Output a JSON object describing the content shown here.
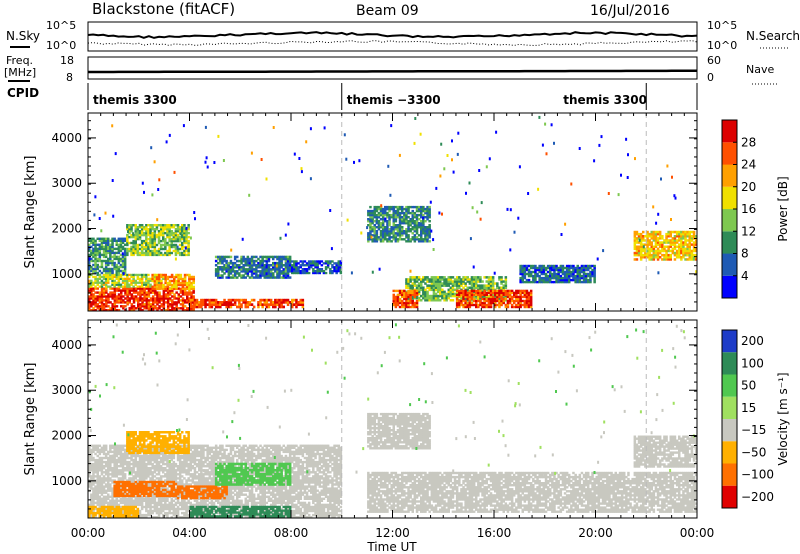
{
  "header": {
    "radar": "Blackstone (fitACF)",
    "beam": "Beam 09",
    "date": "16/Jul/2016"
  },
  "status_panels": {
    "nsky_label": "N.Sky",
    "nsky_ticks": [
      "10^5",
      "10^0"
    ],
    "nsearch_label": "N.Search",
    "nsearch_ticks": [
      "10^5",
      "10^0"
    ],
    "freq_label": "Freq.",
    "freq_unit": "[MHz]",
    "freq_ticks": [
      "18",
      "8"
    ],
    "nave_label": "Nave",
    "nave_ticks": [
      "60",
      "0"
    ],
    "cpid_label": "CPID",
    "cpid_segments": [
      {
        "name": "themis 3300",
        "start_hour": 0,
        "end_hour": 10
      },
      {
        "name": "themis −3300",
        "start_hour": 10,
        "end_hour": 22
      },
      {
        "name": "themis 3300",
        "start_hour": 22,
        "end_hour": 24
      }
    ]
  },
  "chart_data": [
    {
      "type": "heatmap",
      "title": "",
      "xlabel": "Time UT",
      "ylabel": "Slant Range [km]",
      "xlim_hours": [
        0,
        24
      ],
      "ylim": [
        180,
        4550
      ],
      "x_tick_labels": [
        "00:00",
        "04:00",
        "08:00",
        "12:00",
        "16:00",
        "20:00",
        "00:00"
      ],
      "y_tick_labels": [
        "1000",
        "2000",
        "3000",
        "4000"
      ],
      "y_ticks": [
        1000,
        2000,
        3000,
        4000
      ],
      "colorbar_label": "Power [dB]",
      "colorbar_ticks": [
        "4",
        "8",
        "12",
        "16",
        "20",
        "24",
        "28"
      ],
      "colorbar_colors": [
        "#0000ff",
        "#1e5ab4",
        "#2e8b57",
        "#7ec850",
        "#f0e000",
        "#ffa000",
        "#ff5000",
        "#dc0000"
      ],
      "regions": [
        {
          "t0": 0.0,
          "t1": 4.2,
          "r0": 180,
          "r1": 700,
          "value": 28
        },
        {
          "t0": 0.0,
          "t1": 3.0,
          "r0": 700,
          "r1": 1000,
          "value": 16
        },
        {
          "t0": 0.0,
          "t1": 1.5,
          "r0": 1000,
          "r1": 1800,
          "value": 10
        },
        {
          "t0": 1.5,
          "t1": 4.0,
          "r0": 1400,
          "r1": 2100,
          "value": 14
        },
        {
          "t0": 2.5,
          "t1": 4.2,
          "r0": 650,
          "r1": 1000,
          "value": 22
        },
        {
          "t0": 4.0,
          "t1": 8.5,
          "r0": 250,
          "r1": 450,
          "value": 27
        },
        {
          "t0": 5.0,
          "t1": 8.0,
          "r0": 900,
          "r1": 1400,
          "value": 8
        },
        {
          "t0": 8.0,
          "t1": 10.0,
          "r0": 1000,
          "r1": 1300,
          "value": 6
        },
        {
          "t0": 12.5,
          "t1": 16.5,
          "r0": 400,
          "r1": 950,
          "value": 13
        },
        {
          "t0": 14.5,
          "t1": 17.5,
          "r0": 250,
          "r1": 650,
          "value": 27
        },
        {
          "t0": 12.0,
          "t1": 13.0,
          "r0": 250,
          "r1": 650,
          "value": 26
        },
        {
          "t0": 11.0,
          "t1": 13.5,
          "r0": 1700,
          "r1": 2500,
          "value": 9
        },
        {
          "t0": 17.0,
          "t1": 20.0,
          "r0": 800,
          "r1": 1200,
          "value": 7
        },
        {
          "t0": 21.5,
          "t1": 24.0,
          "r0": 1300,
          "r1": 1950,
          "value": 20
        }
      ]
    },
    {
      "type": "heatmap",
      "title": "",
      "xlabel": "Time UT",
      "ylabel": "Slant Range [km]",
      "xlim_hours": [
        0,
        24
      ],
      "ylim": [
        180,
        4550
      ],
      "x_tick_labels": [
        "00:00",
        "04:00",
        "08:00",
        "12:00",
        "16:00",
        "20:00",
        "00:00"
      ],
      "y_tick_labels": [
        "1000",
        "2000",
        "3000",
        "4000"
      ],
      "y_ticks": [
        1000,
        2000,
        3000,
        4000
      ],
      "colorbar_label": "Velocity [m s⁻¹]",
      "colorbar_ticks": [
        "200",
        "100",
        "50",
        "15",
        "−15",
        "−50",
        "−100",
        "−200"
      ],
      "colorbar_colors": [
        "#1e3cc8",
        "#2e8b57",
        "#50c850",
        "#a0e060",
        "#c8c8c0",
        "#ffb000",
        "#ff7000",
        "#e00000"
      ],
      "regions": [
        {
          "t0": 0.0,
          "t1": 10.0,
          "r0": 180,
          "r1": 1800,
          "value": 0
        },
        {
          "t0": 1.0,
          "t1": 3.5,
          "r0": 650,
          "r1": 1000,
          "value": -60
        },
        {
          "t0": 3.5,
          "t1": 5.5,
          "r0": 600,
          "r1": 900,
          "value": -80
        },
        {
          "t0": 4.0,
          "t1": 8.0,
          "r0": 200,
          "r1": 450,
          "value": 60
        },
        {
          "t0": 5.0,
          "t1": 8.0,
          "r0": 900,
          "r1": 1400,
          "value": 40
        },
        {
          "t0": 1.5,
          "t1": 4.0,
          "r0": 1600,
          "r1": 2100,
          "value": -30
        },
        {
          "t0": 0.0,
          "t1": 2.0,
          "r0": 180,
          "r1": 450,
          "value": -40
        },
        {
          "t0": 11.0,
          "t1": 24.0,
          "r0": 300,
          "r1": 1200,
          "value": 0
        },
        {
          "t0": 11.0,
          "t1": 13.5,
          "r0": 1700,
          "r1": 2500,
          "value": 0
        },
        {
          "t0": 21.5,
          "t1": 24.0,
          "r0": 1300,
          "r1": 2000,
          "value": 0
        }
      ]
    }
  ]
}
